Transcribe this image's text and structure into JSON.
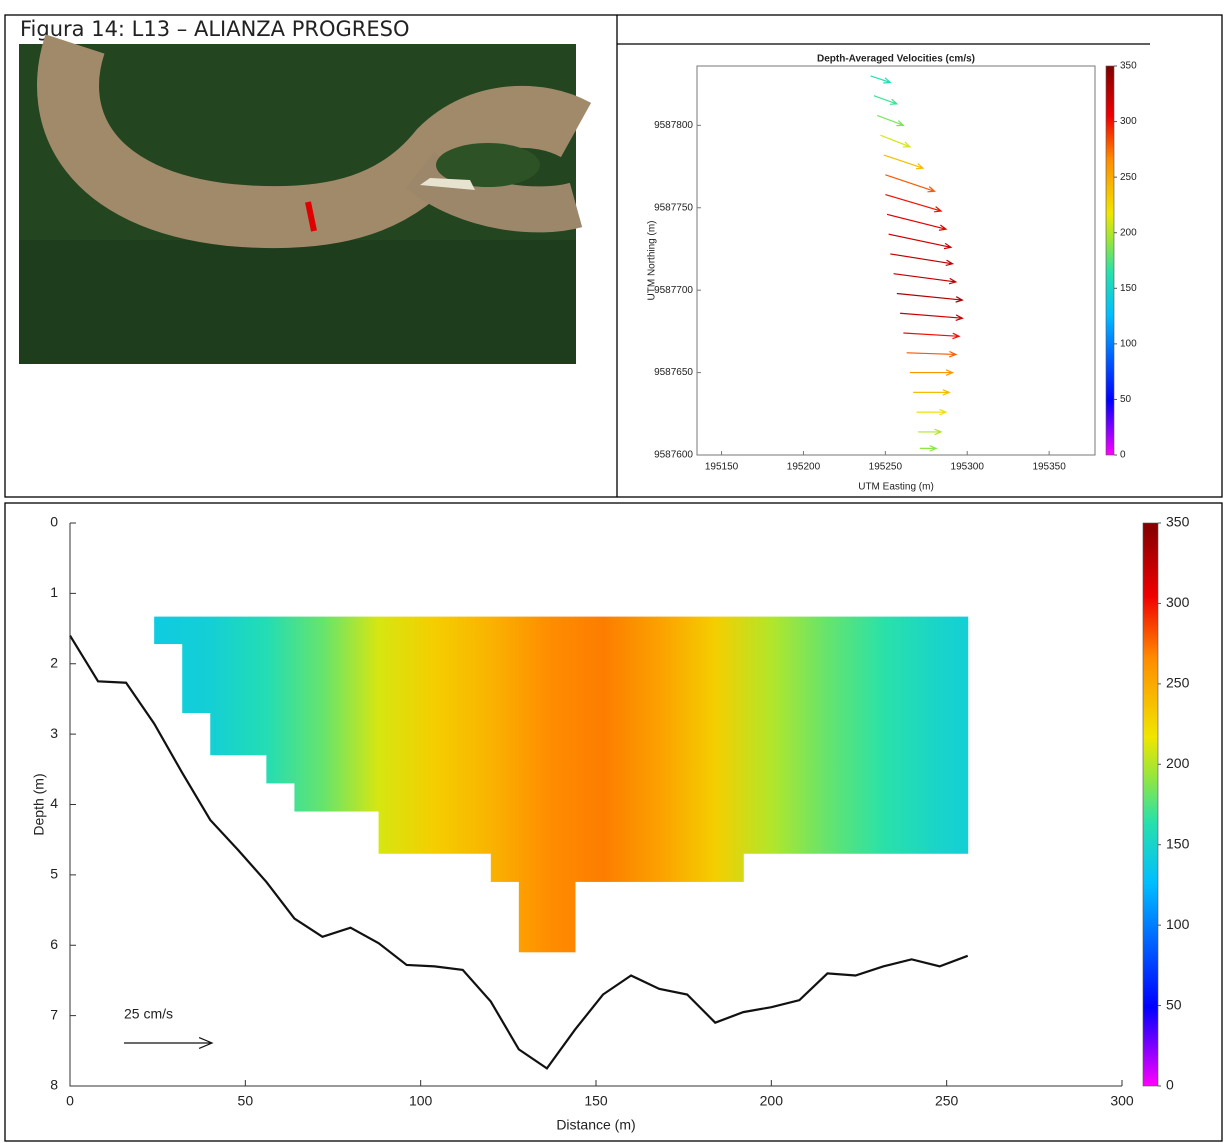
{
  "caption": "Figura 14: L13 – ALIANZA PROGRESO",
  "chart_data": [
    {
      "type": "quiver",
      "title": "Depth-Averaged Velocities (cm/s)",
      "x_label": "UTM Easting (m)",
      "y_label": "UTM Northing (m)",
      "xlim": [
        195135,
        195378
      ],
      "ylim": [
        9587600,
        9587836
      ],
      "xticks": [
        195150,
        195200,
        195250,
        195300,
        195350
      ],
      "yticks": [
        9587600,
        9587650,
        9587700,
        9587750,
        9587800
      ],
      "clim": [
        0,
        350
      ],
      "cticks": [
        0,
        50,
        100,
        150,
        200,
        250,
        300,
        350
      ],
      "vectors": {
        "x": [
          195241,
          195243,
          195245,
          195247,
          195249,
          195250,
          195250,
          195251,
          195252,
          195253,
          195255,
          195257,
          195259,
          195261,
          195263,
          195265,
          195267,
          195269,
          195270,
          195271
        ],
        "y": [
          9587830,
          9587818,
          9587806,
          9587794,
          9587782,
          9587770,
          9587758,
          9587746,
          9587734,
          9587722,
          9587710,
          9587698,
          9587686,
          9587674,
          9587662,
          9587650,
          9587638,
          9587626,
          9587614,
          9587604
        ],
        "u": [
          12,
          14,
          16,
          18,
          24,
          30,
          34,
          36,
          38,
          38,
          38,
          40,
          38,
          34,
          30,
          26,
          22,
          18,
          14,
          10
        ],
        "v": [
          -4,
          -5,
          -6,
          -7,
          -8,
          -10,
          -10,
          -9,
          -8,
          -6,
          -5,
          -4,
          -3,
          -2,
          -1,
          0,
          0,
          0,
          0,
          0
        ],
        "speed": [
          160,
          170,
          185,
          210,
          240,
          280,
          300,
          310,
          320,
          325,
          325,
          330,
          320,
          300,
          280,
          260,
          240,
          220,
          200,
          190
        ]
      }
    },
    {
      "type": "section",
      "x_label": "Distance (m)",
      "y_label": "Depth (m)",
      "reference_label": "25 cm/s",
      "xlim": [
        0,
        300
      ],
      "ylim": [
        0,
        8
      ],
      "xticks": [
        0,
        50,
        100,
        150,
        200,
        250,
        300
      ],
      "yticks": [
        0,
        1,
        2,
        3,
        4,
        5,
        6,
        7,
        8
      ],
      "clim": [
        0,
        350
      ],
      "cticks": [
        0,
        50,
        100,
        150,
        200,
        250,
        300,
        350
      ],
      "bed": {
        "distance": [
          0,
          8,
          16,
          24,
          32,
          40,
          48,
          56,
          64,
          72,
          80,
          88,
          96,
          104,
          112,
          120,
          128,
          136,
          144,
          152,
          160,
          168,
          176,
          184,
          192,
          200,
          208,
          216,
          224,
          232,
          240,
          248,
          256
        ],
        "depth": [
          1.6,
          2.25,
          2.27,
          2.85,
          3.55,
          4.22,
          4.65,
          5.1,
          5.62,
          5.88,
          5.75,
          5.97,
          6.28,
          6.3,
          6.35,
          6.8,
          7.48,
          7.75,
          7.2,
          6.7,
          6.43,
          6.62,
          6.7,
          7.1,
          6.95,
          6.88,
          6.78,
          6.4,
          6.43,
          6.3,
          6.2,
          6.3,
          6.15
        ]
      },
      "field_top": 1.33,
      "field_edges": [
        24,
        32,
        40,
        56,
        64,
        88,
        120,
        128,
        144,
        192,
        256
      ],
      "field_bottom": [
        1.72,
        2.7,
        3.3,
        3.7,
        4.1,
        4.7,
        5.1,
        6.1,
        5.1,
        4.7
      ],
      "speed_samples": {
        "distance": [
          24,
          40,
          56,
          72,
          88,
          104,
          120,
          136,
          152,
          168,
          184,
          200,
          216,
          232,
          248,
          256
        ],
        "speed": [
          140,
          145,
          160,
          180,
          210,
          230,
          245,
          265,
          270,
          255,
          230,
          200,
          180,
          165,
          150,
          145
        ]
      }
    }
  ]
}
